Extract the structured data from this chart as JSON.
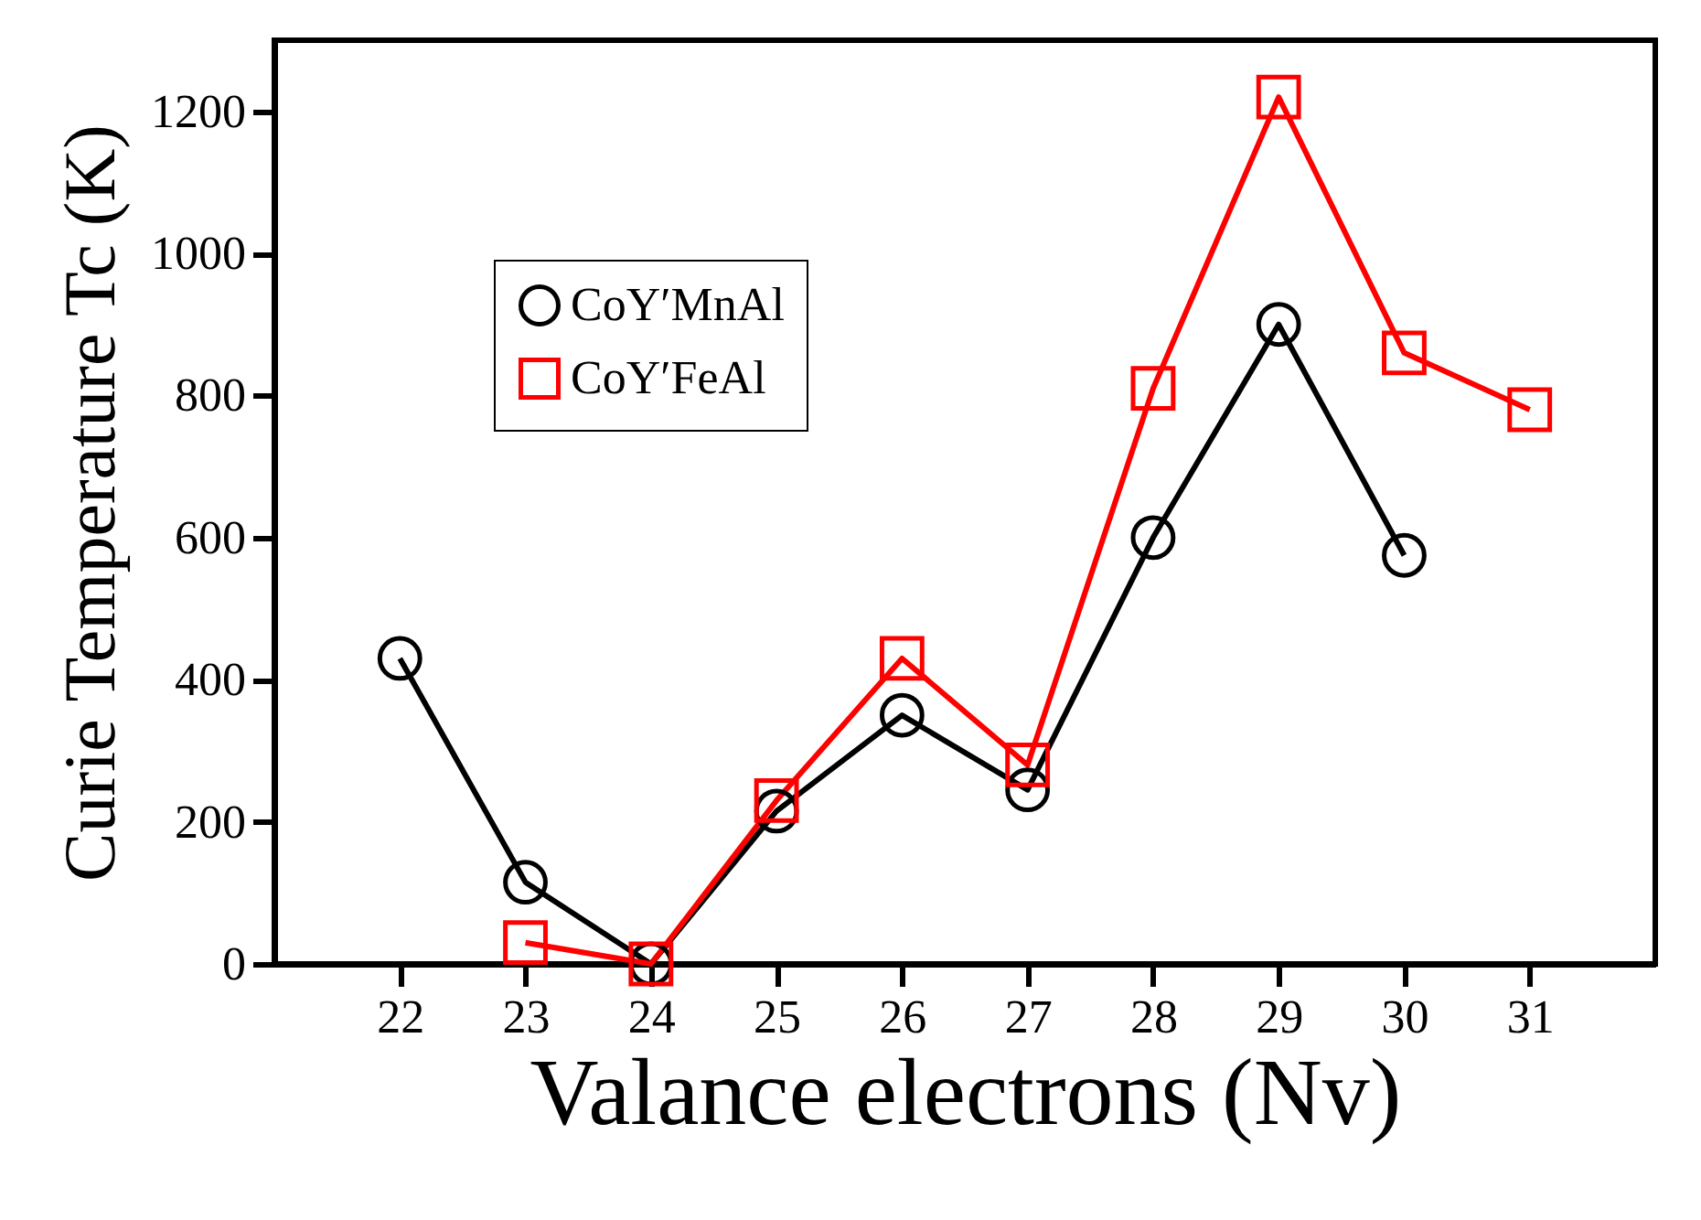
{
  "chart_data": {
    "type": "line",
    "xlabel": "Valance electrons (Nv)",
    "ylabel": "Curie Temperature Tc (K)",
    "xlim": [
      21,
      32
    ],
    "xticks": [
      22,
      23,
      24,
      25,
      26,
      27,
      28,
      29,
      30,
      31
    ],
    "ylim": [
      0,
      1300
    ],
    "yticks": [
      0,
      200,
      400,
      600,
      800,
      1000,
      1200
    ],
    "grid": false,
    "legend": "top left",
    "line_style": "solid",
    "series": [
      {
        "name": "CoY′MnAl",
        "color": "#000000",
        "marker": "circle",
        "x": [
          22,
          23,
          24,
          25,
          26,
          27,
          28,
          29,
          30
        ],
        "values": [
          430,
          115,
          0,
          215,
          350,
          245,
          600,
          900,
          575
        ]
      },
      {
        "name": "CoY′FeAl",
        "color": "#ff0000",
        "marker": "square",
        "x": [
          23,
          24,
          25,
          26,
          27,
          28,
          29,
          30,
          31
        ],
        "values": [
          30,
          0,
          230,
          430,
          280,
          810,
          1220,
          860,
          780
        ]
      }
    ]
  }
}
